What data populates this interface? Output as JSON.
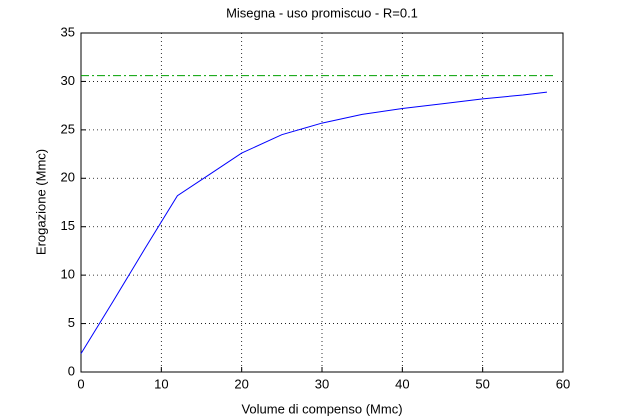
{
  "chart_data": {
    "type": "line",
    "title": "Misegna  -  uso promiscuo  -   R=0.1",
    "xlabel": "Volume di compenso (Mmc)",
    "ylabel": "Erogazione (Mmc)",
    "xlim": [
      0,
      60
    ],
    "xticks": [
      0,
      10,
      20,
      30,
      40,
      50,
      60
    ],
    "ylim": [
      0,
      35
    ],
    "yticks": [
      0,
      5,
      10,
      15,
      20,
      25,
      30,
      35
    ],
    "grid": true,
    "series": [
      {
        "color": "#0000ff",
        "dash": "solid",
        "x": [
          0,
          4,
          8,
          12,
          16,
          20,
          25,
          30,
          35,
          40,
          45,
          50,
          55,
          58
        ],
        "values": [
          1.9,
          7.3,
          12.8,
          18.2,
          20.4,
          22.6,
          24.5,
          25.7,
          26.6,
          27.2,
          27.7,
          28.2,
          28.6,
          28.9
        ]
      },
      {
        "color": "#00a000",
        "dash": "dashdot",
        "x": [
          0,
          59
        ],
        "values": [
          30.6,
          30.6
        ]
      }
    ]
  }
}
